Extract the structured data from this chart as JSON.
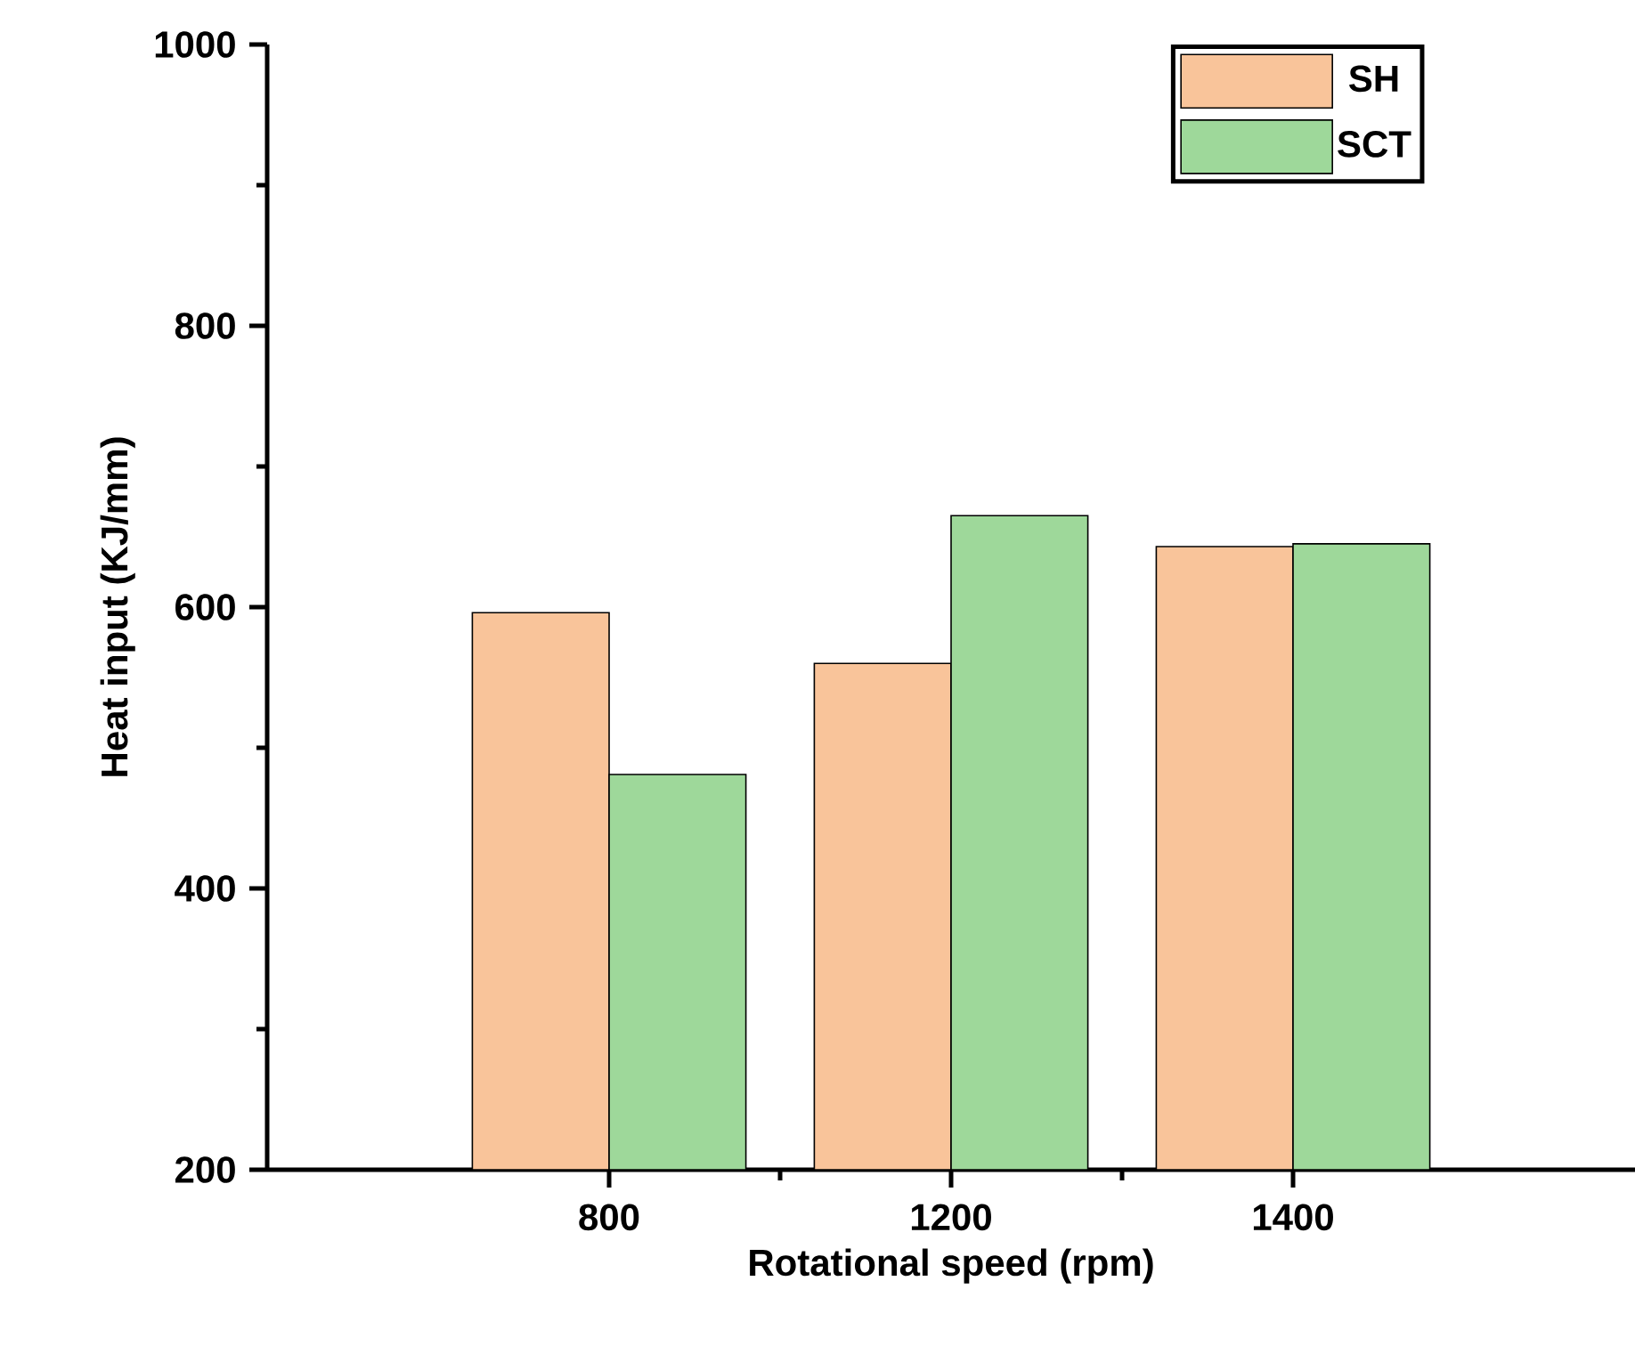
{
  "chart_data": {
    "type": "bar",
    "xlabel": "Rotational speed (rpm)",
    "ylabel": "Heat input (KJ/mm)",
    "categories": [
      "800",
      "1200",
      "1400"
    ],
    "series": [
      {
        "name": "SH",
        "color": "#f9c49a",
        "values": [
          596,
          560,
          643
        ]
      },
      {
        "name": "SCT",
        "color": "#9ed89a",
        "values": [
          481,
          665,
          645
        ]
      }
    ],
    "ylim": [
      200,
      1000
    ],
    "yticks": [
      200,
      400,
      600,
      800,
      1000
    ],
    "legend": "top right"
  }
}
